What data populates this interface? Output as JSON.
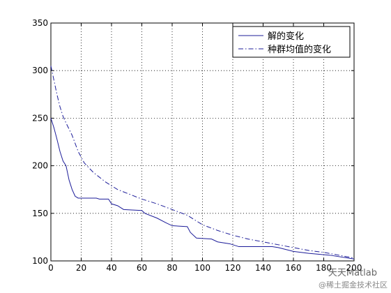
{
  "chart_data": {
    "type": "line",
    "xlim": [
      0,
      200
    ],
    "xticks": [
      0,
      20,
      40,
      60,
      80,
      100,
      120,
      140,
      160,
      180,
      200
    ],
    "ylim": [
      100,
      350
    ],
    "yticks": [
      100,
      150,
      200,
      250,
      300,
      350
    ],
    "grid": true,
    "legend": "northeast",
    "series": [
      {
        "name": "解的变化",
        "color": "#1c1c99",
        "dash": "solid",
        "x": [
          0,
          2,
          4,
          6,
          8,
          10,
          12,
          14,
          16,
          18,
          20,
          30,
          32,
          38,
          40,
          44,
          48,
          60,
          62,
          70,
          76,
          80,
          90,
          92,
          96,
          106,
          110,
          118,
          124,
          146,
          150,
          160,
          170,
          184,
          196,
          200
        ],
        "values": [
          250,
          240,
          228,
          215,
          205,
          200,
          185,
          175,
          168,
          166,
          166,
          166,
          165,
          165,
          160,
          158,
          154,
          153,
          150,
          145,
          140,
          137,
          136,
          130,
          124,
          123,
          120,
          118,
          115,
          115,
          114,
          110,
          108,
          106,
          103,
          102
        ]
      },
      {
        "name": "种群均值的变化",
        "color": "#1c1c99",
        "dash": "dashdot",
        "x": [
          0,
          2,
          4,
          6,
          8,
          10,
          14,
          18,
          22,
          28,
          36,
          44,
          52,
          60,
          70,
          80,
          90,
          100,
          110,
          120,
          130,
          140,
          150,
          160,
          170,
          180,
          190,
          200
        ],
        "values": [
          305,
          290,
          275,
          262,
          252,
          245,
          232,
          215,
          203,
          193,
          183,
          175,
          170,
          165,
          160,
          154,
          148,
          138,
          132,
          127,
          123,
          120,
          117,
          114,
          111,
          109,
          106,
          103
        ]
      }
    ]
  },
  "watermark": {
    "line1": "天天Matlab",
    "line2": "@稀土掘金技术社区"
  }
}
